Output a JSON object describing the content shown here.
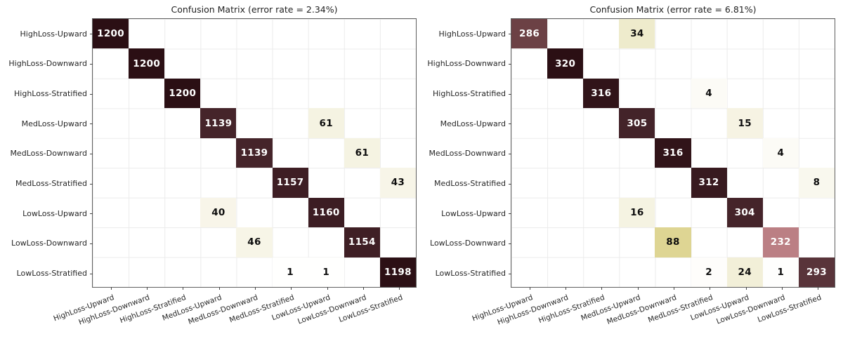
{
  "page": {
    "background_color": "#ffffff"
  },
  "colormap": {
    "name": "pink_r-like",
    "stops": [
      {
        "t": 0.0,
        "color": "#ffffff"
      },
      {
        "t": 0.03,
        "color": "#f8f6ea"
      },
      {
        "t": 0.06,
        "color": "#f4f1de"
      },
      {
        "t": 0.11,
        "color": "#edeaca"
      },
      {
        "t": 0.275,
        "color": "#ded593"
      },
      {
        "t": 0.5,
        "color": "#d8a88b"
      },
      {
        "t": 0.725,
        "color": "#bb7f84"
      },
      {
        "t": 0.89,
        "color": "#6f4347"
      },
      {
        "t": 0.92,
        "color": "#553138"
      },
      {
        "t": 0.95,
        "color": "#45242a"
      },
      {
        "t": 1.0,
        "color": "#2b0f14"
      }
    ],
    "light_text_color": "#ffffff",
    "dark_text_color": "#0d0d0d",
    "light_text_threshold": 0.6
  },
  "chart_data": [
    {
      "type": "heatmap",
      "title": "Confusion Matrix (error rate = 2.34%)",
      "error_rate_label": "2.34%",
      "vmin": 0,
      "vmax": 1200,
      "grid": true,
      "x_labels": [
        "HighLoss-Upward",
        "HighLoss-Downward",
        "HighLoss-Stratified",
        "MedLoss-Upward",
        "MedLoss-Downward",
        "MedLoss-Stratified",
        "LowLoss-Upward",
        "LowLoss-Downward",
        "LowLoss-Stratified"
      ],
      "y_labels": [
        "HighLoss-Upward",
        "HighLoss-Downward",
        "HighLoss-Stratified",
        "MedLoss-Upward",
        "MedLoss-Downward",
        "MedLoss-Stratified",
        "LowLoss-Upward",
        "LowLoss-Downward",
        "LowLoss-Stratified"
      ],
      "matrix": [
        [
          1200,
          0,
          0,
          0,
          0,
          0,
          0,
          0,
          0
        ],
        [
          0,
          1200,
          0,
          0,
          0,
          0,
          0,
          0,
          0
        ],
        [
          0,
          0,
          1200,
          0,
          0,
          0,
          0,
          0,
          0
        ],
        [
          0,
          0,
          0,
          1139,
          0,
          0,
          61,
          0,
          0
        ],
        [
          0,
          0,
          0,
          0,
          1139,
          0,
          0,
          61,
          0
        ],
        [
          0,
          0,
          0,
          0,
          0,
          1157,
          0,
          0,
          43
        ],
        [
          0,
          0,
          0,
          40,
          0,
          0,
          1160,
          0,
          0
        ],
        [
          0,
          0,
          0,
          0,
          46,
          0,
          0,
          1154,
          0
        ],
        [
          0,
          0,
          0,
          0,
          0,
          1,
          1,
          0,
          1198
        ]
      ]
    },
    {
      "type": "heatmap",
      "title": "Confusion Matrix (error rate = 6.81%)",
      "error_rate_label": "6.81%",
      "vmin": 0,
      "vmax": 320,
      "grid": true,
      "x_labels": [
        "HighLoss-Upward",
        "HighLoss-Downward",
        "HighLoss-Stratified",
        "MedLoss-Upward",
        "MedLoss-Downward",
        "MedLoss-Stratified",
        "LowLoss-Upward",
        "LowLoss-Downward",
        "LowLoss-Stratified"
      ],
      "y_labels": [
        "HighLoss-Upward",
        "HighLoss-Downward",
        "HighLoss-Stratified",
        "MedLoss-Upward",
        "MedLoss-Downward",
        "MedLoss-Stratified",
        "LowLoss-Upward",
        "LowLoss-Downward",
        "LowLoss-Stratified"
      ],
      "matrix": [
        [
          286,
          0,
          0,
          34,
          0,
          0,
          0,
          0,
          0
        ],
        [
          0,
          320,
          0,
          0,
          0,
          0,
          0,
          0,
          0
        ],
        [
          0,
          0,
          316,
          0,
          0,
          4,
          0,
          0,
          0
        ],
        [
          0,
          0,
          0,
          305,
          0,
          0,
          15,
          0,
          0
        ],
        [
          0,
          0,
          0,
          0,
          316,
          0,
          0,
          4,
          0
        ],
        [
          0,
          0,
          0,
          0,
          0,
          312,
          0,
          0,
          8
        ],
        [
          0,
          0,
          0,
          16,
          0,
          0,
          304,
          0,
          0
        ],
        [
          0,
          0,
          0,
          0,
          88,
          0,
          0,
          232,
          0
        ],
        [
          0,
          0,
          0,
          0,
          0,
          2,
          24,
          1,
          293
        ]
      ]
    }
  ]
}
